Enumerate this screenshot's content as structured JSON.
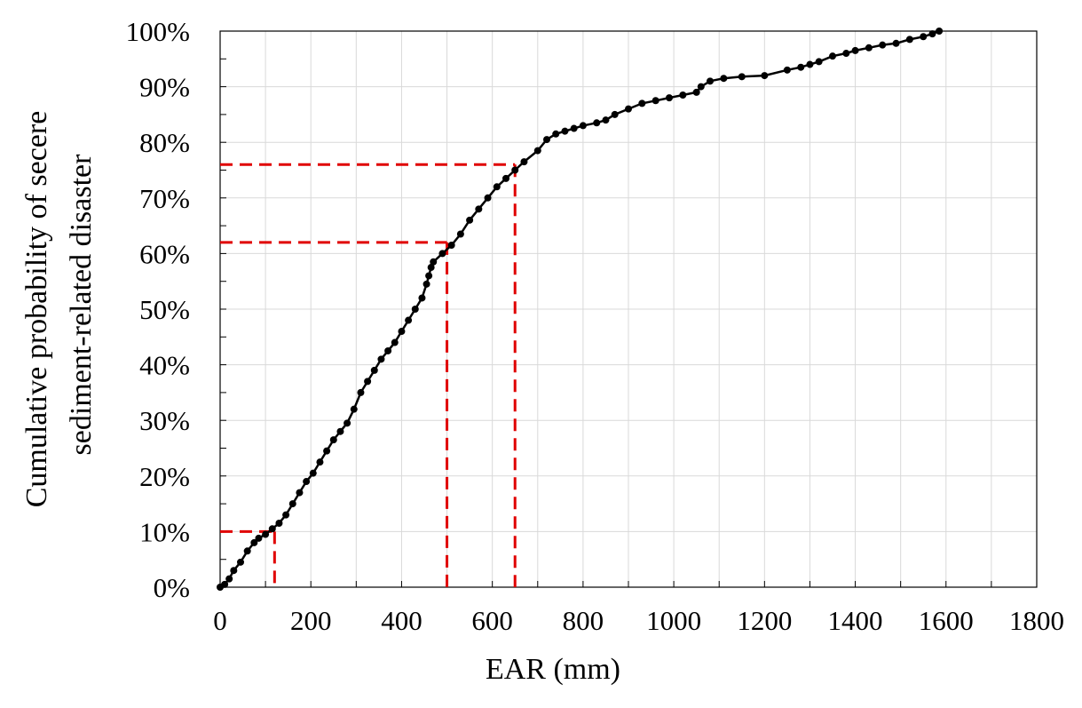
{
  "chart_data": {
    "type": "line",
    "title": "",
    "xlabel": "EAR (mm)",
    "ylabel_lines": [
      "Cumulative probability of  secere",
      "sediment-related disaster"
    ],
    "xlim": [
      0,
      1800
    ],
    "ylim": [
      0,
      1
    ],
    "x_ticks": [
      0,
      200,
      400,
      600,
      800,
      1000,
      1200,
      1400,
      1600,
      1800
    ],
    "x_tick_labels": [
      "0",
      "200",
      "400",
      "600",
      "800",
      "1000",
      "1200",
      "1400",
      "1600",
      "1800"
    ],
    "y_ticks": [
      0,
      0.1,
      0.2,
      0.3,
      0.4,
      0.5,
      0.6,
      0.7,
      0.8,
      0.9,
      1.0
    ],
    "y_tick_labels": [
      "0%",
      "10%",
      "20%",
      "30%",
      "40%",
      "50%",
      "60%",
      "70%",
      "80%",
      "90%",
      "100%"
    ],
    "grid": true,
    "series": [
      {
        "color": "#000000",
        "marker": "circle",
        "x": [
          0,
          10,
          20,
          30,
          45,
          60,
          75,
          85,
          100,
          115,
          130,
          145,
          160,
          175,
          190,
          205,
          220,
          235,
          250,
          265,
          280,
          295,
          310,
          325,
          340,
          355,
          370,
          385,
          400,
          415,
          430,
          445,
          455,
          460,
          465,
          470,
          490,
          510,
          530,
          550,
          570,
          590,
          610,
          630,
          650,
          670,
          700,
          720,
          740,
          760,
          780,
          800,
          830,
          850,
          870,
          900,
          930,
          960,
          990,
          1020,
          1050,
          1060,
          1080,
          1110,
          1150,
          1200,
          1250,
          1280,
          1300,
          1320,
          1350,
          1380,
          1400,
          1430,
          1460,
          1490,
          1520,
          1550,
          1570,
          1585
        ],
        "y": [
          0,
          0.005,
          0.015,
          0.03,
          0.045,
          0.065,
          0.08,
          0.088,
          0.095,
          0.105,
          0.115,
          0.13,
          0.15,
          0.17,
          0.19,
          0.205,
          0.225,
          0.245,
          0.265,
          0.28,
          0.295,
          0.32,
          0.35,
          0.37,
          0.39,
          0.41,
          0.425,
          0.44,
          0.46,
          0.48,
          0.5,
          0.52,
          0.545,
          0.56,
          0.575,
          0.585,
          0.6,
          0.615,
          0.635,
          0.66,
          0.68,
          0.7,
          0.72,
          0.735,
          0.75,
          0.765,
          0.785,
          0.805,
          0.815,
          0.82,
          0.825,
          0.83,
          0.835,
          0.84,
          0.85,
          0.86,
          0.87,
          0.875,
          0.88,
          0.885,
          0.89,
          0.9,
          0.91,
          0.915,
          0.918,
          0.92,
          0.93,
          0.935,
          0.94,
          0.945,
          0.955,
          0.96,
          0.965,
          0.97,
          0.975,
          0.978,
          0.985,
          0.99,
          0.995,
          1.0
        ]
      }
    ],
    "reference_lines": [
      {
        "x": 120,
        "y": 0.1,
        "color": "#e00000",
        "dash": "dashed"
      },
      {
        "x": 500,
        "y": 0.62,
        "color": "#e00000",
        "dash": "dashed"
      },
      {
        "x": 650,
        "y": 0.76,
        "color": "#e00000",
        "dash": "dashed"
      }
    ]
  }
}
